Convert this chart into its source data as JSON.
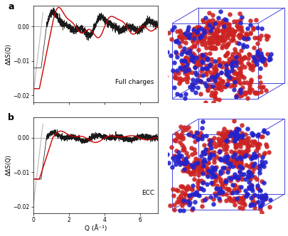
{
  "panel_a_label": "a",
  "panel_b_label": "b",
  "panel_a_title": "Full charges",
  "panel_b_title": "ECC",
  "xlabel": "Q (Å⁻¹)",
  "ylabel": "ΔΔS(Q)",
  "ylim_a": [
    -0.022,
    0.006
  ],
  "ylim_b": [
    -0.022,
    0.006
  ],
  "xlim": [
    0,
    7
  ],
  "yticks": [
    -0.02,
    -0.01,
    0
  ],
  "xticks": [
    0,
    2,
    4,
    6
  ],
  "black_color": "#1a1a1a",
  "red_color": "#cc0000",
  "gray_line_color": "#bbbbbb",
  "background": "#ffffff",
  "box_blue": "#4444dd",
  "blob_red": "#cc2222",
  "blob_blue": "#2222cc"
}
